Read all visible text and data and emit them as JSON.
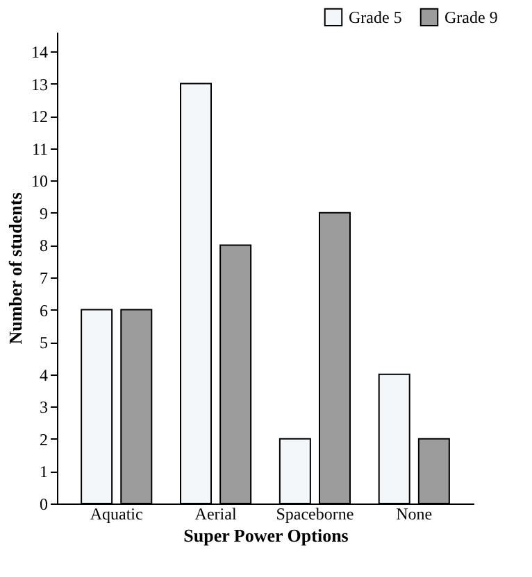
{
  "chart_data": {
    "type": "bar",
    "xlabel": "Super Power Options",
    "ylabel": "Number of students",
    "categories": [
      "Aquatic",
      "Aerial",
      "Spaceborne",
      "None"
    ],
    "series": [
      {
        "name": "Grade 5",
        "color": "#f4f7f9",
        "values": [
          6,
          13,
          2,
          4
        ]
      },
      {
        "name": "Grade 9",
        "color": "#9c9c9c",
        "values": [
          6,
          8,
          9,
          2
        ]
      }
    ],
    "ylim": [
      0,
      14.6
    ],
    "yticks": [
      0,
      1,
      2,
      3,
      4,
      5,
      6,
      7,
      8,
      9,
      10,
      11,
      12,
      13,
      14
    ],
    "grid": false,
    "legend": "top right"
  }
}
